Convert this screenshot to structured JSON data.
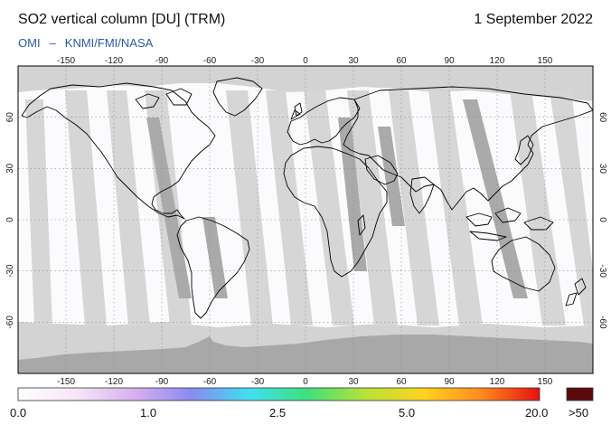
{
  "header": {
    "title": "SO2 vertical column [DU] (TRM)",
    "date": "1 September 2022",
    "credit_left": "OMI",
    "credit_sep": "–",
    "credit_right": "KNMI/FMI/NASA"
  },
  "map": {
    "lon_ticks": [
      -150,
      -120,
      -90,
      -60,
      -30,
      0,
      30,
      60,
      90,
      120,
      150
    ],
    "lat_ticks": [
      60,
      30,
      0,
      -30,
      -60
    ],
    "lon_range": [
      -180,
      180
    ],
    "lat_range": [
      -90,
      90
    ],
    "no_data_color": "#d2d2d2",
    "swath_color": "#a9a9a9",
    "coast_color": "#000000"
  },
  "colorbar": {
    "labels": [
      "0.0",
      "1.0",
      "2.5",
      "5.0",
      "20.0"
    ],
    "over_label": ">50",
    "over_color": "#5a0a0a",
    "stops": [
      "#ffffff",
      "#f6e6f7",
      "#d8b0ef",
      "#8a8af0",
      "#3fe0f0",
      "#3fe07a",
      "#b8e23a",
      "#ffd21e",
      "#ff8a1e",
      "#e81010"
    ]
  }
}
